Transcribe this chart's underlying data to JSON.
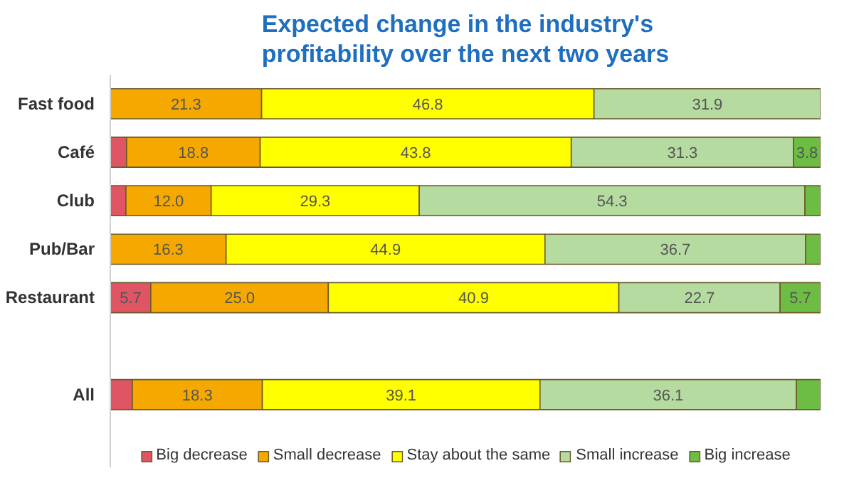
{
  "chart_data": {
    "type": "bar",
    "orientation": "horizontal",
    "stacked": true,
    "title": "Expected change in the industry's profitability over the next two years",
    "categories": [
      "Fast food",
      "Café",
      "Club",
      "Pub/Bar",
      "Restaurant",
      null,
      "All"
    ],
    "xlim": [
      0,
      100
    ],
    "tick_labels": "y",
    "grid": false,
    "legend": "bottom",
    "series": [
      {
        "name": "Big decrease",
        "color": "#e05563",
        "values": [
          0,
          2.3,
          2.2,
          0,
          5.7,
          null,
          3.1
        ],
        "value_labels": [
          null,
          null,
          null,
          null,
          "5.7",
          null,
          null
        ]
      },
      {
        "name": "Small decrease",
        "color": "#f5a800",
        "values": [
          21.3,
          18.8,
          12.0,
          16.3,
          25.0,
          null,
          18.3
        ],
        "value_labels": [
          "21.3",
          "18.8",
          "12.0",
          "16.3",
          "25.0",
          null,
          "18.3"
        ]
      },
      {
        "name": "Stay about the same",
        "color": "#ffff00",
        "values": [
          46.8,
          43.8,
          29.3,
          44.9,
          40.9,
          null,
          39.1
        ],
        "value_labels": [
          "46.8",
          "43.8",
          "29.3",
          "44.9",
          "40.9",
          null,
          "39.1"
        ]
      },
      {
        "name": "Small increase",
        "color": "#b5dba0",
        "values": [
          31.9,
          31.3,
          54.3,
          36.7,
          22.7,
          null,
          36.1
        ],
        "value_labels": [
          "31.9",
          "31.3",
          "54.3",
          "36.7",
          "22.7",
          null,
          "36.1"
        ]
      },
      {
        "name": "Big increase",
        "color": "#6dbd45",
        "values": [
          0,
          3.8,
          2.2,
          2.1,
          5.7,
          null,
          3.4
        ],
        "value_labels": [
          null,
          "3.8",
          null,
          null,
          "5.7",
          null,
          null
        ]
      }
    ]
  }
}
